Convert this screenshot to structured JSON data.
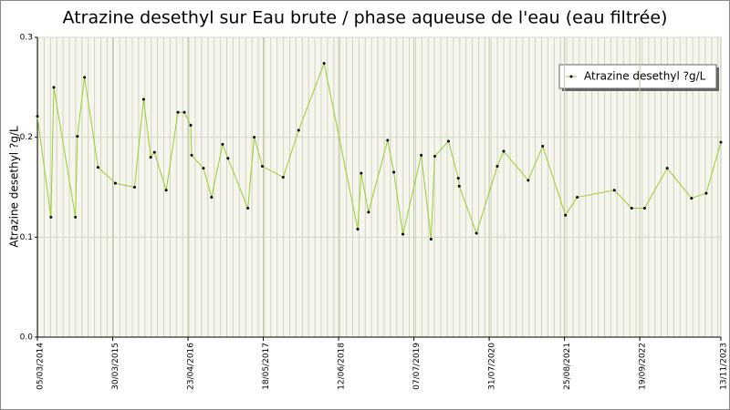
{
  "chart_data": {
    "type": "line",
    "title": "Atrazine desethyl sur Eau brute / phase aqueuse de l'eau (eau filtrée)",
    "y_label": "Atrazine desethyl ?g/L",
    "x": [
      "2014-03-05",
      "2014-05-14",
      "2014-05-29",
      "2014-09-18",
      "2014-09-28",
      "2014-11-04",
      "2015-01-13",
      "2015-04-13",
      "2015-07-21",
      "2015-09-06",
      "2015-10-13",
      "2015-11-01",
      "2016-01-01",
      "2016-03-02",
      "2016-04-04",
      "2016-05-07",
      "2016-05-12",
      "2016-07-12",
      "2016-08-23",
      "2016-10-19",
      "2016-11-16",
      "2017-02-27",
      "2017-04-01",
      "2017-05-13",
      "2017-08-29",
      "2017-11-17",
      "2018-03-29",
      "2018-09-19",
      "2018-10-07",
      "2018-11-14",
      "2019-02-21",
      "2019-03-25",
      "2019-05-11",
      "2019-08-14",
      "2019-10-04",
      "2019-10-23",
      "2020-01-02",
      "2020-02-22",
      "2020-02-27",
      "2020-05-26",
      "2020-09-11",
      "2020-10-14",
      "2021-02-18",
      "2021-05-04",
      "2021-08-30",
      "2021-10-30",
      "2022-05-10",
      "2022-08-08",
      "2022-10-14",
      "2023-02-08",
      "2023-06-14",
      "2023-08-29",
      "2023-11-13"
    ],
    "series": [
      {
        "name": "Atrazine desethyl ?g/L",
        "color": "#9acd32",
        "marker_color": "#000000",
        "values": [
          0.221,
          0.12,
          0.25,
          0.12,
          0.201,
          0.26,
          0.17,
          0.154,
          0.15,
          0.238,
          0.18,
          0.185,
          0.147,
          0.225,
          0.225,
          0.212,
          0.182,
          0.169,
          0.14,
          0.193,
          0.179,
          0.129,
          0.2,
          0.171,
          0.16,
          0.207,
          0.274,
          0.108,
          0.164,
          0.125,
          0.197,
          0.165,
          0.103,
          0.182,
          0.098,
          0.181,
          0.196,
          0.159,
          0.151,
          0.104,
          0.171,
          0.186,
          0.157,
          0.191,
          0.122,
          0.14,
          0.147,
          0.129,
          0.129,
          0.169,
          0.139,
          0.144,
          0.195
        ]
      }
    ],
    "xlim": [
      "2014-03-05",
      "2023-11-13"
    ],
    "xticks": [
      {
        "value": "2014-03-05",
        "label": "05/03/2014"
      },
      {
        "value": "2015-03-30",
        "label": "30/03/2015"
      },
      {
        "value": "2016-04-23",
        "label": "23/04/2016"
      },
      {
        "value": "2017-05-18",
        "label": "18/05/2017"
      },
      {
        "value": "2018-06-12",
        "label": "12/06/2018"
      },
      {
        "value": "2019-07-07",
        "label": "07/07/2019"
      },
      {
        "value": "2020-07-31",
        "label": "31/07/2020"
      },
      {
        "value": "2021-08-25",
        "label": "25/08/2021"
      },
      {
        "value": "2022-09-19",
        "label": "19/09/2022"
      },
      {
        "value": "2023-11-13",
        "label": "13/11/2023"
      }
    ],
    "ylim": [
      0,
      0.3
    ],
    "yticks": [
      {
        "value": 0,
        "label": "0.0"
      },
      0.1,
      0.2,
      0.3
    ],
    "grid": true,
    "legend": "upper right"
  }
}
